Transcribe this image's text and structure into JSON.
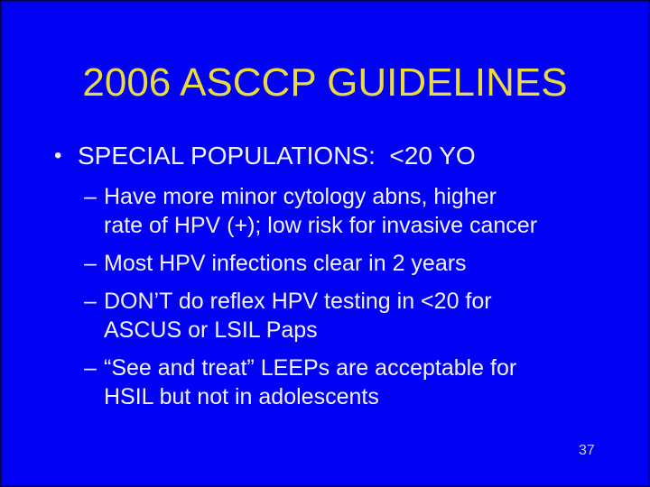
{
  "slide": {
    "title": "2006 ASCCP GUIDELINES",
    "bullet": {
      "marker": "•",
      "text": "SPECIAL POPULATIONS:  <20 YO"
    },
    "sub_bullets": [
      {
        "marker": "–",
        "lines": [
          "Have more minor cytology abns, higher",
          "rate of HPV (+); low risk for invasive cancer"
        ]
      },
      {
        "marker": "–",
        "lines": [
          "Most HPV infections clear in 2 years"
        ]
      },
      {
        "marker": "–",
        "lines": [
          "DON’T do reflex HPV testing in <20 for",
          "ASCUS or LSIL Paps"
        ]
      },
      {
        "marker": "–",
        "lines": [
          "“See and treat” LEEPs are acceptable for",
          "HSIL but not in adolescents"
        ]
      }
    ],
    "page_number": "37"
  },
  "colors": {
    "background": "#0101f4",
    "title": "#e9da3e",
    "text": "#f2f2f6",
    "page_number": "#d2d2c4"
  }
}
